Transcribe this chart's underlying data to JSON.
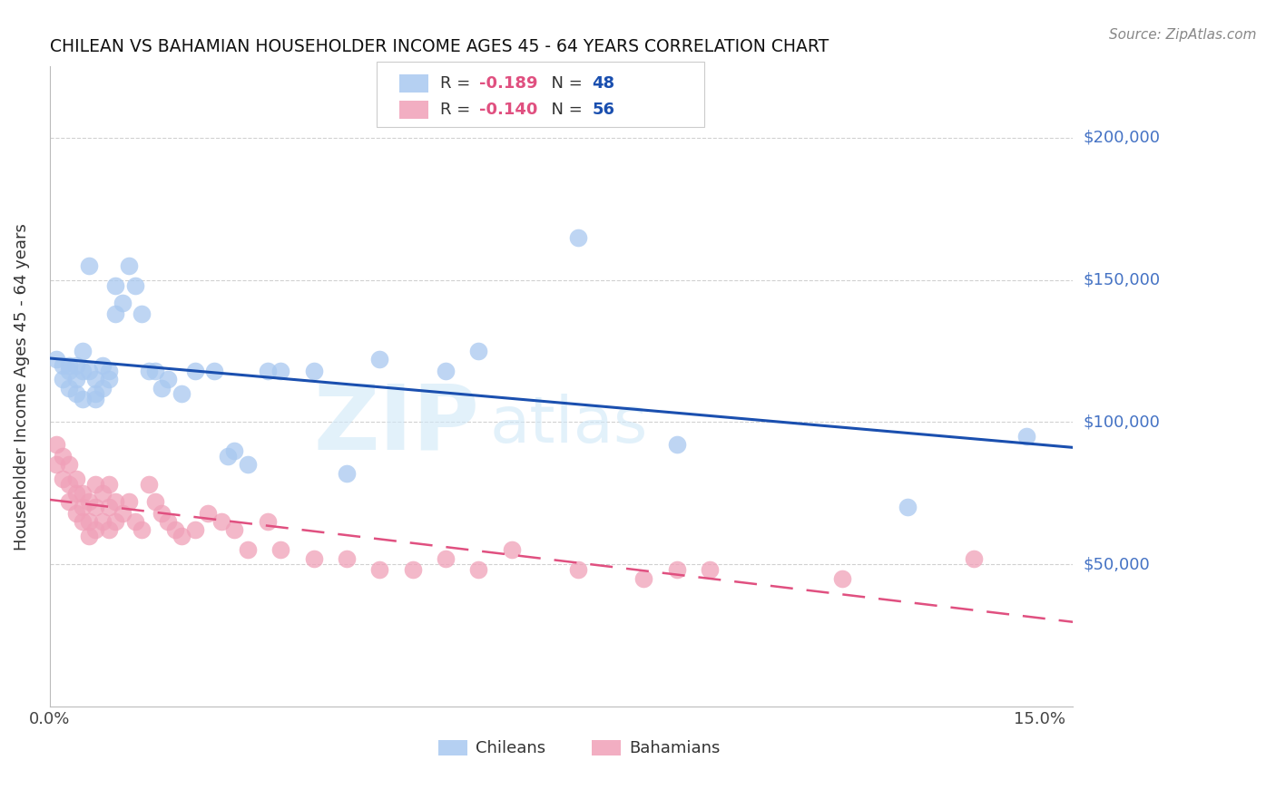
{
  "title": "CHILEAN VS BAHAMIAN HOUSEHOLDER INCOME AGES 45 - 64 YEARS CORRELATION CHART",
  "source": "Source: ZipAtlas.com",
  "ylabel": "Householder Income Ages 45 - 64 years",
  "ytick_labels": [
    "$50,000",
    "$100,000",
    "$150,000",
    "$200,000"
  ],
  "ytick_values": [
    50000,
    100000,
    150000,
    200000
  ],
  "ylim": [
    0,
    225000
  ],
  "xlim": [
    0.0,
    0.155
  ],
  "xtick_positions": [
    0.0,
    0.15
  ],
  "xtick_labels": [
    "0.0%",
    "15.0%"
  ],
  "chilean_color": "#A8C8F0",
  "bahamian_color": "#F0A0B8",
  "chilean_line_color": "#1A4FAF",
  "bahamian_line_color": "#E05080",
  "chilean_x": [
    0.001,
    0.002,
    0.002,
    0.003,
    0.003,
    0.003,
    0.004,
    0.004,
    0.004,
    0.005,
    0.005,
    0.005,
    0.006,
    0.006,
    0.007,
    0.007,
    0.007,
    0.008,
    0.008,
    0.009,
    0.009,
    0.01,
    0.01,
    0.011,
    0.012,
    0.013,
    0.014,
    0.015,
    0.016,
    0.017,
    0.018,
    0.02,
    0.022,
    0.025,
    0.027,
    0.028,
    0.03,
    0.033,
    0.035,
    0.04,
    0.045,
    0.05,
    0.06,
    0.065,
    0.08,
    0.095,
    0.13,
    0.148
  ],
  "chilean_y": [
    122000,
    120000,
    115000,
    118000,
    112000,
    120000,
    110000,
    115000,
    120000,
    108000,
    118000,
    125000,
    155000,
    118000,
    115000,
    110000,
    108000,
    112000,
    120000,
    118000,
    115000,
    148000,
    138000,
    142000,
    155000,
    148000,
    138000,
    118000,
    118000,
    112000,
    115000,
    110000,
    118000,
    118000,
    88000,
    90000,
    85000,
    118000,
    118000,
    118000,
    82000,
    122000,
    118000,
    125000,
    165000,
    92000,
    70000,
    95000
  ],
  "bahamian_x": [
    0.001,
    0.001,
    0.002,
    0.002,
    0.003,
    0.003,
    0.003,
    0.004,
    0.004,
    0.004,
    0.005,
    0.005,
    0.005,
    0.006,
    0.006,
    0.006,
    0.007,
    0.007,
    0.007,
    0.008,
    0.008,
    0.009,
    0.009,
    0.009,
    0.01,
    0.01,
    0.011,
    0.012,
    0.013,
    0.014,
    0.015,
    0.016,
    0.017,
    0.018,
    0.019,
    0.02,
    0.022,
    0.024,
    0.026,
    0.028,
    0.03,
    0.033,
    0.035,
    0.04,
    0.045,
    0.05,
    0.055,
    0.06,
    0.065,
    0.07,
    0.08,
    0.09,
    0.095,
    0.1,
    0.12,
    0.14
  ],
  "bahamian_y": [
    92000,
    85000,
    88000,
    80000,
    85000,
    78000,
    72000,
    80000,
    75000,
    68000,
    75000,
    70000,
    65000,
    72000,
    65000,
    60000,
    78000,
    70000,
    62000,
    75000,
    65000,
    78000,
    70000,
    62000,
    72000,
    65000,
    68000,
    72000,
    65000,
    62000,
    78000,
    72000,
    68000,
    65000,
    62000,
    60000,
    62000,
    68000,
    65000,
    62000,
    55000,
    65000,
    55000,
    52000,
    52000,
    48000,
    48000,
    52000,
    48000,
    55000,
    48000,
    45000,
    48000,
    48000,
    45000,
    52000
  ],
  "watermark_zip": "ZIP",
  "watermark_atlas": "atlas",
  "background_color": "#FFFFFF",
  "grid_color": "#CCCCCC",
  "ytick_color": "#4472C4",
  "legend_r_color": "#E05080",
  "legend_n_color": "#1A4FAF",
  "legend_chilean_r": "-0.189",
  "legend_chilean_n": "48",
  "legend_bahamian_r": "-0.140",
  "legend_bahamian_n": "56"
}
